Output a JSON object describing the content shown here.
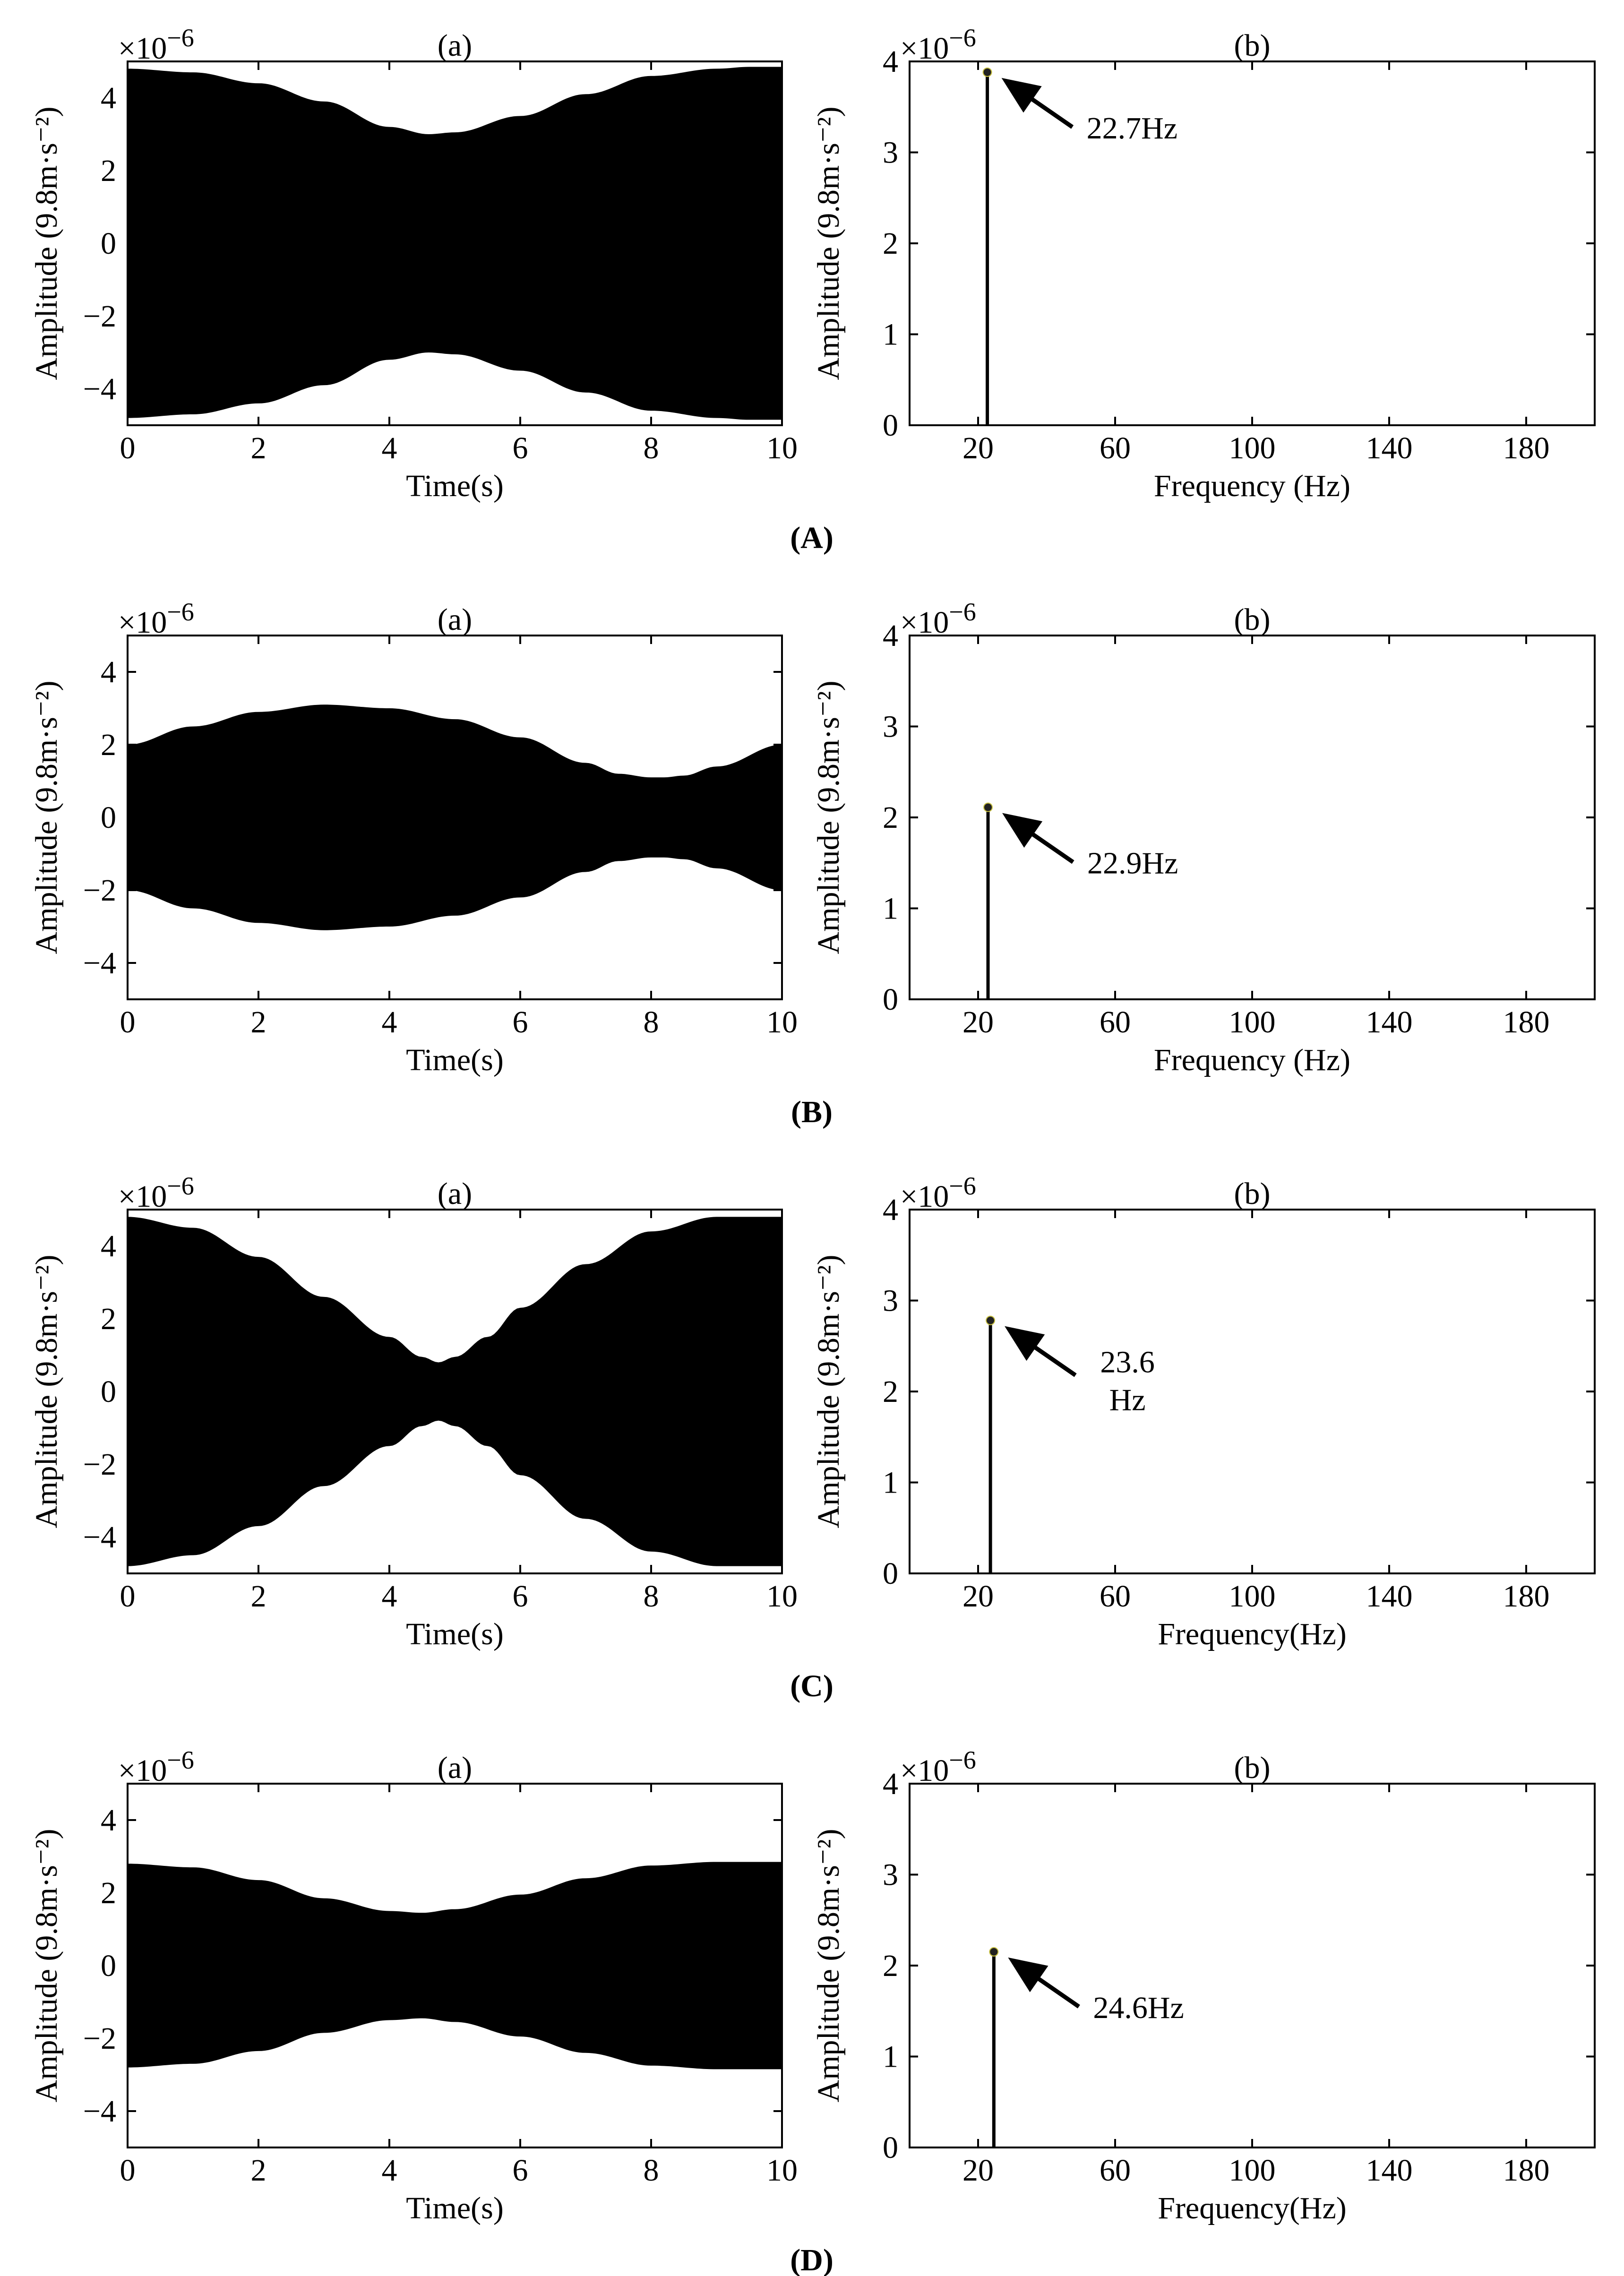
{
  "chart_data": [
    {
      "group": "(A)",
      "panels": [
        {
          "type": "area",
          "title": "(a)",
          "xlabel": "Time(s)",
          "ylabel": "Amplitude (9.8m·s⁻²)",
          "exponent": "×10",
          "exponent_power": "−6",
          "xlim": [
            0,
            10
          ],
          "ylim": [
            -5,
            5
          ],
          "xticks": [
            "0",
            "2",
            "4",
            "6",
            "8",
            "10"
          ],
          "yticks": [
            "−4",
            "−2",
            "0",
            "2",
            "4"
          ],
          "envelope": {
            "t": [
              0,
              1,
              2,
              3,
              4,
              4.6,
              5,
              6,
              7,
              8,
              9,
              9.5,
              10
            ],
            "upper": [
              4.8,
              4.7,
              4.4,
              3.9,
              3.2,
              3.0,
              3.05,
              3.5,
              4.1,
              4.6,
              4.8,
              4.85,
              4.85
            ]
          },
          "grid": false
        },
        {
          "type": "bar",
          "title": "(b)",
          "xlabel": "Frequency (Hz)",
          "ylabel": "Amplitude (9.8m·s⁻²)",
          "exponent": "×10",
          "exponent_power": "−6",
          "xlim": [
            0,
            200
          ],
          "ylim": [
            0,
            4
          ],
          "xticks": [
            "20",
            "60",
            "100",
            "140",
            "180"
          ],
          "yticks": [
            "0",
            "1",
            "2",
            "3",
            "4"
          ],
          "peak": {
            "x": 22.7,
            "y": 3.85
          },
          "annotation": [
            "22.7Hz"
          ],
          "grid": false
        }
      ]
    },
    {
      "group": "(B)",
      "panels": [
        {
          "type": "area",
          "title": "(a)",
          "xlabel": "Time(s)",
          "ylabel": "Amplitude (9.8m·s⁻²)",
          "exponent": "×10",
          "exponent_power": "−6",
          "xlim": [
            0,
            10
          ],
          "ylim": [
            -5,
            5
          ],
          "xticks": [
            "0",
            "2",
            "4",
            "6",
            "8",
            "10"
          ],
          "yticks": [
            "−4",
            "−2",
            "0",
            "2",
            "4"
          ],
          "envelope": {
            "t": [
              0,
              1,
              2,
              3,
              4,
              5,
              6,
              7,
              7.5,
              8,
              8.2,
              8.5,
              9,
              10
            ],
            "upper": [
              2.0,
              2.5,
              2.9,
              3.1,
              3.0,
              2.7,
              2.2,
              1.5,
              1.2,
              1.1,
              1.1,
              1.15,
              1.4,
              2.0
            ]
          },
          "grid": false
        },
        {
          "type": "bar",
          "title": "(b)",
          "xlabel": "Frequency (Hz)",
          "ylabel": "Amplitude (9.8m·s⁻²)",
          "exponent": "×10",
          "exponent_power": "−6",
          "xlim": [
            0,
            200
          ],
          "ylim": [
            0,
            4
          ],
          "xticks": [
            "20",
            "60",
            "100",
            "140",
            "180"
          ],
          "yticks": [
            "0",
            "1",
            "2",
            "3",
            "4"
          ],
          "peak": {
            "x": 22.9,
            "y": 2.08
          },
          "annotation": [
            "22.9Hz"
          ],
          "grid": false
        }
      ]
    },
    {
      "group": "(C)",
      "panels": [
        {
          "type": "area",
          "title": "(a)",
          "xlabel": "Time(s)",
          "ylabel": "Amplitude (9.8m·s⁻²)",
          "exponent": "×10",
          "exponent_power": "−6",
          "xlim": [
            0,
            10
          ],
          "ylim": [
            -5,
            5
          ],
          "xticks": [
            "0",
            "2",
            "4",
            "6",
            "8",
            "10"
          ],
          "yticks": [
            "−4",
            "−2",
            "0",
            "2",
            "4"
          ],
          "envelope": {
            "t": [
              0,
              1,
              2,
              3,
              4,
              4.5,
              4.75,
              5,
              5.5,
              6,
              7,
              8,
              9,
              10
            ],
            "upper": [
              4.8,
              4.5,
              3.7,
              2.6,
              1.5,
              0.95,
              0.8,
              0.95,
              1.5,
              2.3,
              3.5,
              4.4,
              4.8,
              4.8
            ]
          },
          "grid": false
        },
        {
          "type": "bar",
          "title": "(b)",
          "xlabel": "Frequency(Hz)",
          "ylabel": "Amplitude (9.8m·s⁻²)",
          "exponent": "×10",
          "exponent_power": "−6",
          "xlim": [
            0,
            200
          ],
          "ylim": [
            0,
            4
          ],
          "xticks": [
            "20",
            "60",
            "100",
            "140",
            "180"
          ],
          "yticks": [
            "0",
            "1",
            "2",
            "3",
            "4"
          ],
          "peak": {
            "x": 23.6,
            "y": 2.75
          },
          "annotation": [
            "23.6",
            "Hz"
          ],
          "grid": false
        }
      ]
    },
    {
      "group": "(D)",
      "panels": [
        {
          "type": "area",
          "title": "(a)",
          "xlabel": "Time(s)",
          "ylabel": "Amplitude (9.8m·s⁻²)",
          "exponent": "×10",
          "exponent_power": "−6",
          "xlim": [
            0,
            10
          ],
          "ylim": [
            -5,
            5
          ],
          "xticks": [
            "0",
            "2",
            "4",
            "6",
            "8",
            "10"
          ],
          "yticks": [
            "−4",
            "−2",
            "0",
            "2",
            "4"
          ],
          "envelope": {
            "t": [
              0,
              1,
              2,
              3,
              4,
              4.5,
              5,
              6,
              7,
              8,
              9,
              10
            ],
            "upper": [
              2.8,
              2.7,
              2.35,
              1.85,
              1.5,
              1.45,
              1.55,
              1.95,
              2.4,
              2.75,
              2.85,
              2.85
            ]
          },
          "grid": false
        },
        {
          "type": "bar",
          "title": "(b)",
          "xlabel": "Frequency(Hz)",
          "ylabel": "Amplitude (9.8m·s⁻²)",
          "exponent": "×10",
          "exponent_power": "−6",
          "xlim": [
            0,
            200
          ],
          "ylim": [
            0,
            4
          ],
          "xticks": [
            "20",
            "60",
            "100",
            "140",
            "180"
          ],
          "yticks": [
            "0",
            "1",
            "2",
            "3",
            "4"
          ],
          "peak": {
            "x": 24.6,
            "y": 2.12
          },
          "annotation": [
            "24.6Hz"
          ],
          "grid": false
        }
      ]
    }
  ]
}
